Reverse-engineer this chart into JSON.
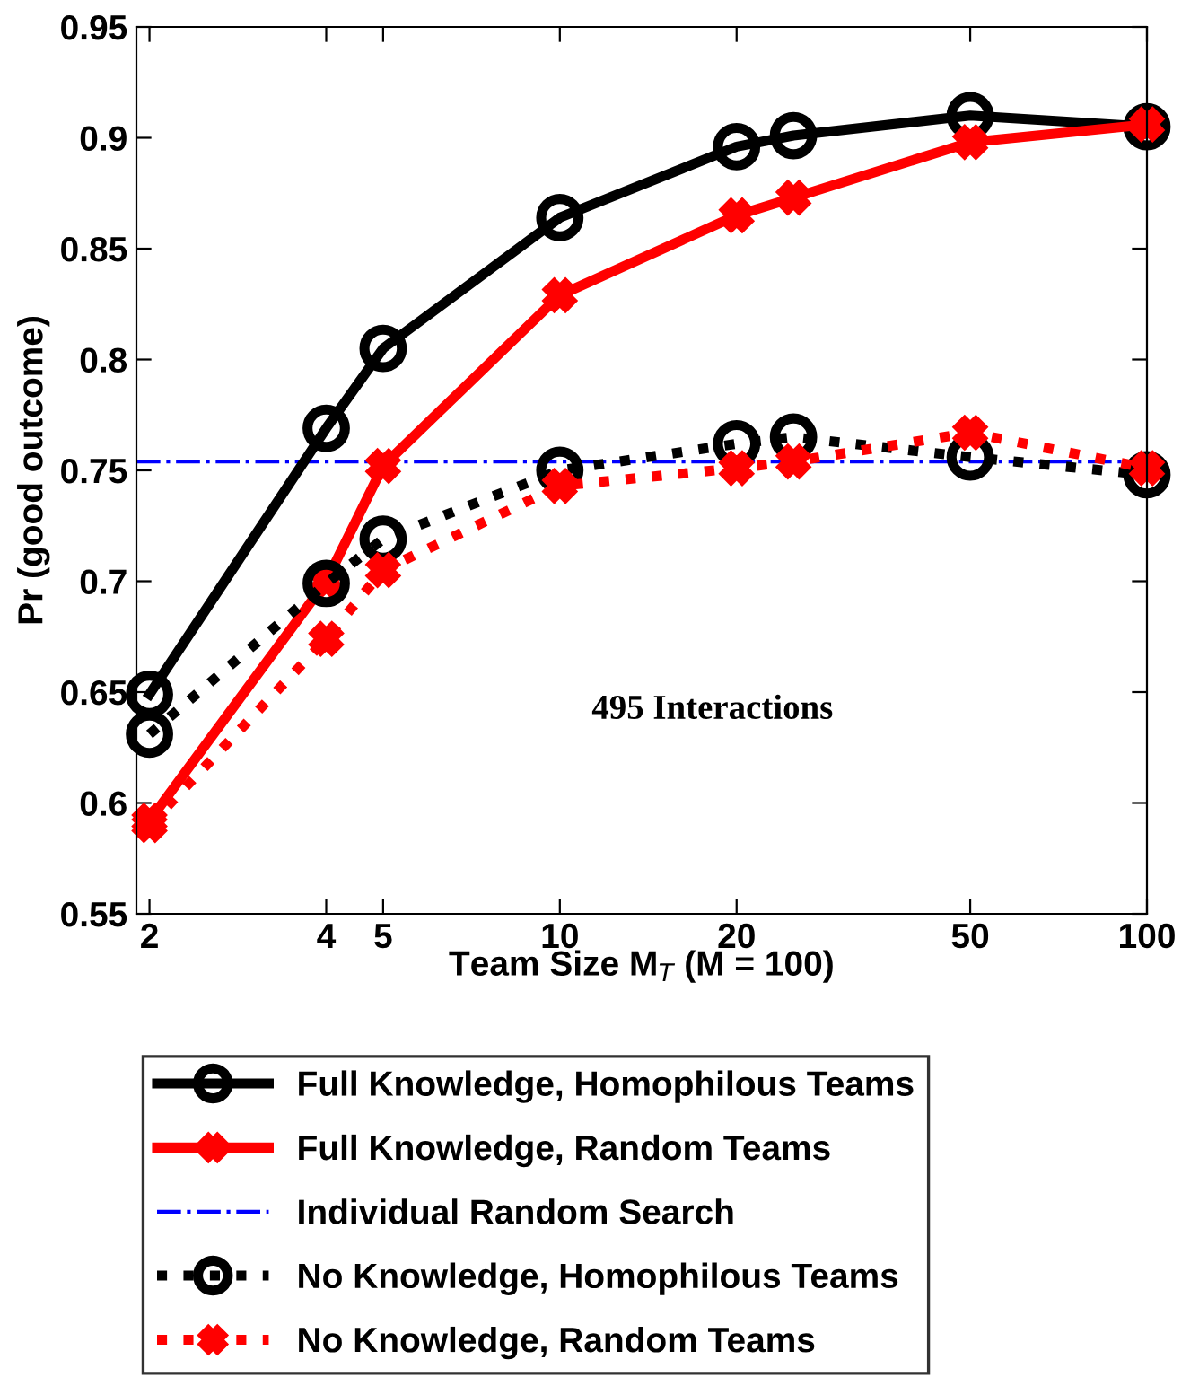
{
  "chart_data": {
    "type": "line",
    "xlabel": "Team Size M$_{T}$ (M = 100)",
    "ylabel": "Pr (good outcome)",
    "log": "x",
    "xlim": [
      1.9,
      100
    ],
    "xticks": [
      2,
      4,
      5,
      10,
      20,
      50,
      100
    ],
    "ylim": [
      0.55,
      0.95
    ],
    "yticks": [
      0.55,
      0.6,
      0.65,
      0.7,
      0.75,
      0.8,
      0.85,
      0.9,
      0.95
    ],
    "grid": false,
    "legend": "bottom",
    "annotations": [
      "495 Interactions"
    ],
    "x": [
      2,
      4,
      5,
      10,
      20,
      25,
      50,
      100
    ],
    "series": [
      {
        "name": "Full Knowledge, Homophilous Teams",
        "color": "#000000",
        "marker": "circle",
        "line_style": "solid",
        "values": [
          0.649,
          0.769,
          0.805,
          0.864,
          0.896,
          0.901,
          0.91,
          0.905
        ]
      },
      {
        "name": "Full Knowledge, Random Teams",
        "color": "#ff0000",
        "marker": "cross",
        "line_style": "solid",
        "values": [
          0.592,
          0.7,
          0.752,
          0.829,
          0.865,
          0.873,
          0.898,
          0.906
        ]
      },
      {
        "name": "No Knowledge, Homophilous Teams",
        "color": "#000000",
        "marker": "circle",
        "line_style": "dotted",
        "values": [
          0.631,
          0.699,
          0.719,
          0.75,
          0.762,
          0.765,
          0.756,
          0.748
        ]
      },
      {
        "name": "No Knowledge, Random Teams",
        "color": "#ff0000",
        "marker": "cross",
        "line_style": "dotted",
        "values": [
          0.59,
          0.674,
          0.705,
          0.743,
          0.751,
          0.754,
          0.767,
          0.751
        ]
      }
    ],
    "ref_lines": [
      {
        "axis": "y",
        "value": 0.754,
        "label": "Individual Random Search",
        "color": "#0000ff",
        "line_style": "dashdot"
      }
    ]
  }
}
